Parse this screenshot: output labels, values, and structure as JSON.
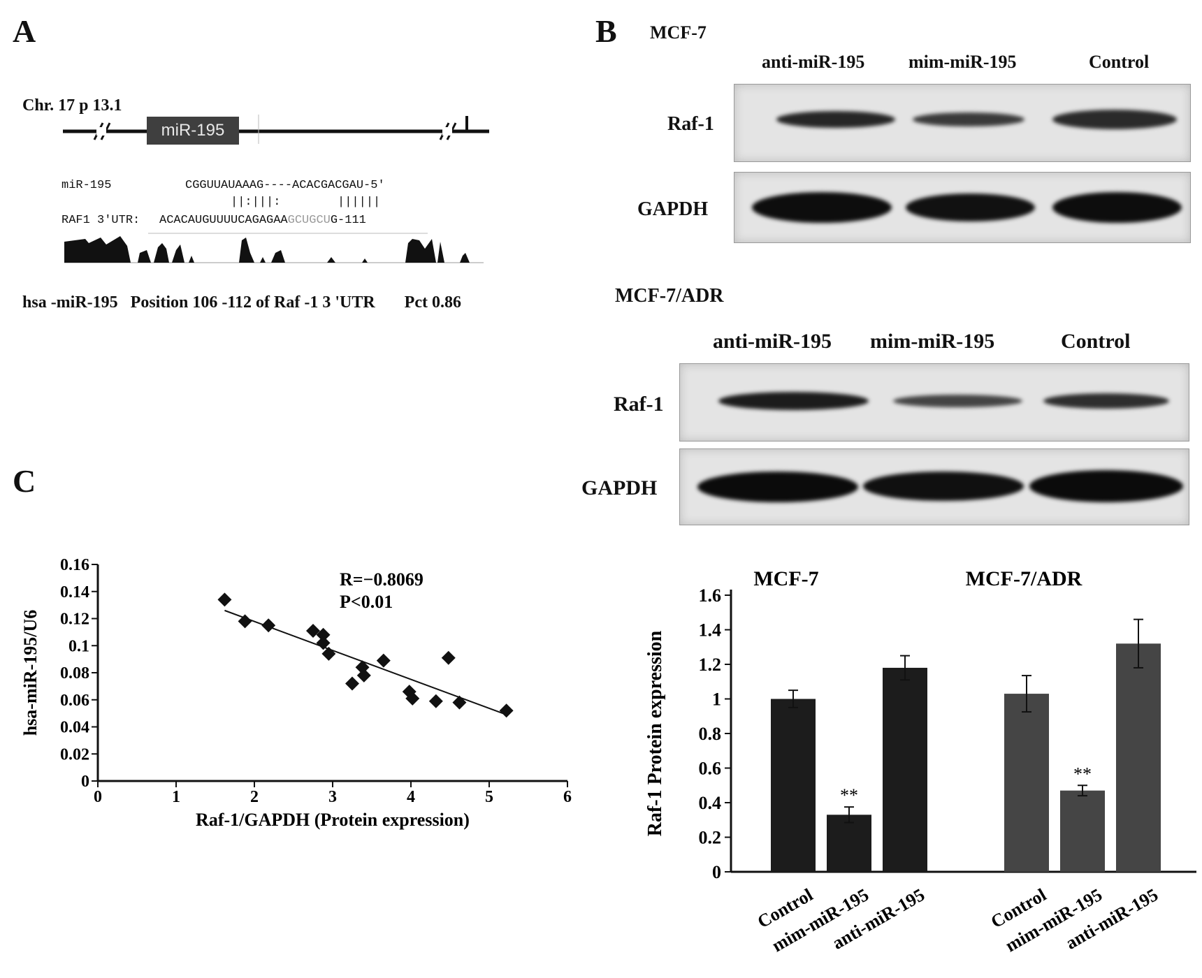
{
  "panel_a": {
    "letter": "A",
    "chromosome": "Chr. 17 p 13.1",
    "gene_box": "miR-195",
    "mir_label": "miR-195",
    "mir_seq": "CGGUUAUAAAG----ACACGACGAU-5'",
    "pairing": "||:|||:        ||||||",
    "utr_label": "RAF1 3'UTR:",
    "utr_seq_a": "ACACAUGUUUUCAGAGAA",
    "utr_seq_b": "GCUGCU",
    "utr_seq_c": "G-111",
    "caption": "hsa -miR-195   Position 106 -112 of Raf -1 3 'UTR       Pct 0.86"
  },
  "panel_b": {
    "letter": "B",
    "blot1": {
      "cell_line": "MCF-7",
      "lanes": [
        "anti-miR-195",
        "mim-miR-195",
        "Control"
      ],
      "row1": "Raf-1",
      "row2": "GAPDH"
    },
    "blot2": {
      "cell_line": "MCF-7/ADR",
      "lanes": [
        "anti-miR-195",
        "mim-miR-195",
        "Control"
      ],
      "row1": "Raf-1",
      "row2": "GAPDH"
    }
  },
  "panel_c": {
    "letter": "C"
  },
  "chart_data": [
    {
      "type": "scatter",
      "xlabel": "Raf-1/GAPDH (Protein expression)",
      "ylabel": "hsa-miR-195/U6",
      "xlim": [
        0,
        6
      ],
      "ylim": [
        0,
        0.16
      ],
      "xticks": [
        "0",
        "1",
        "2",
        "3",
        "4",
        "5",
        "6"
      ],
      "yticks": [
        "0",
        "0.02",
        "0.04",
        "0.06",
        "0.08",
        "0.1",
        "0.12",
        "0.14",
        "0.16"
      ],
      "annotation_r": "R=−0.8069",
      "annotation_p": "P<0.01",
      "points": [
        [
          1.62,
          0.134
        ],
        [
          1.88,
          0.118
        ],
        [
          2.18,
          0.115
        ],
        [
          2.75,
          0.111
        ],
        [
          2.88,
          0.108
        ],
        [
          2.88,
          0.102
        ],
        [
          2.95,
          0.094
        ],
        [
          3.38,
          0.084
        ],
        [
          3.4,
          0.078
        ],
        [
          3.25,
          0.072
        ],
        [
          3.65,
          0.089
        ],
        [
          3.98,
          0.066
        ],
        [
          4.02,
          0.061
        ],
        [
          4.32,
          0.059
        ],
        [
          4.48,
          0.091
        ],
        [
          4.62,
          0.058
        ],
        [
          5.22,
          0.052
        ]
      ],
      "trendline": [
        [
          1.62,
          0.126
        ],
        [
          5.22,
          0.049
        ]
      ],
      "grid": false
    },
    {
      "type": "bar",
      "ylabel": "Raf-1 Protein expression",
      "ylim": [
        0,
        1.6
      ],
      "yticks": [
        "0",
        "0.2",
        "0.4",
        "0.6",
        "0.8",
        "1",
        "1.2",
        "1.4",
        "1.6"
      ],
      "groups": [
        {
          "name": "MCF-7",
          "color": "#1c1c1c",
          "categories": [
            "Control",
            "mim-miR-195",
            "anti-miR-195"
          ],
          "values": [
            1.0,
            0.33,
            1.18
          ],
          "errors": [
            0.05,
            0.045,
            0.07
          ],
          "significance": [
            "",
            "**",
            ""
          ]
        },
        {
          "name": "MCF-7/ADR",
          "color": "#454545",
          "categories": [
            "Control",
            "mim-miR-195",
            "anti-miR-195"
          ],
          "values": [
            1.03,
            0.47,
            1.32
          ],
          "errors": [
            0.105,
            0.03,
            0.14
          ],
          "significance": [
            "",
            "**",
            ""
          ]
        }
      ]
    }
  ]
}
